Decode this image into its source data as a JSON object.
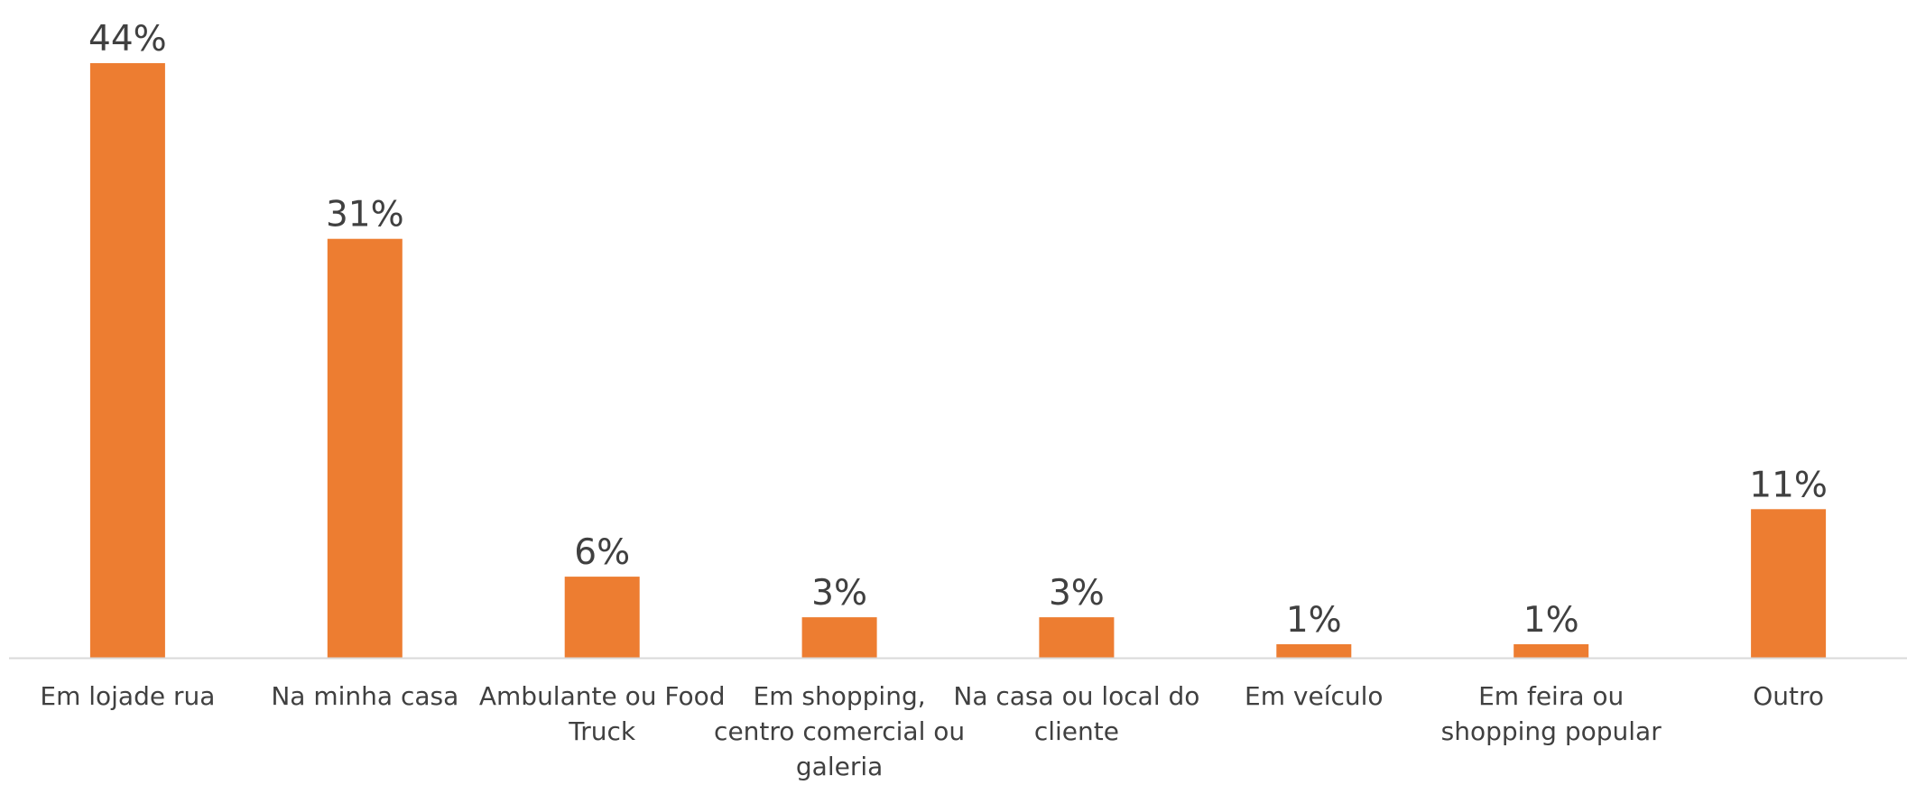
{
  "chart_data": {
    "type": "bar",
    "title": "",
    "xlabel": "",
    "ylabel": "",
    "categories": [
      "Em lojade rua",
      "Na minha casa",
      "Ambulante ou Food Truck",
      "Em shopping, centro comercial ou galeria",
      "Na casa ou local do cliente",
      "Em veículo",
      "Em feira ou shopping popular",
      "Outro"
    ],
    "category_lines": [
      [
        "Em lojade rua"
      ],
      [
        "Na minha casa"
      ],
      [
        "Ambulante ou Food",
        "Truck"
      ],
      [
        "Em shopping,",
        "centro comercial ou",
        "galeria"
      ],
      [
        "Na casa ou local do",
        "cliente"
      ],
      [
        "Em veículo"
      ],
      [
        "Em feira ou",
        "shopping popular"
      ],
      [
        "Outro"
      ]
    ],
    "values": [
      44,
      31,
      6,
      3,
      3,
      1,
      1,
      11
    ],
    "value_labels": [
      "44%",
      "31%",
      "6%",
      "3%",
      "3%",
      "1%",
      "1%",
      "11%"
    ],
    "ylim": [
      0,
      44
    ],
    "grid": false,
    "legend": "none",
    "bar_color": "#ED7D31",
    "axis_color": "#D9D9D9",
    "text_color": "#404040"
  }
}
